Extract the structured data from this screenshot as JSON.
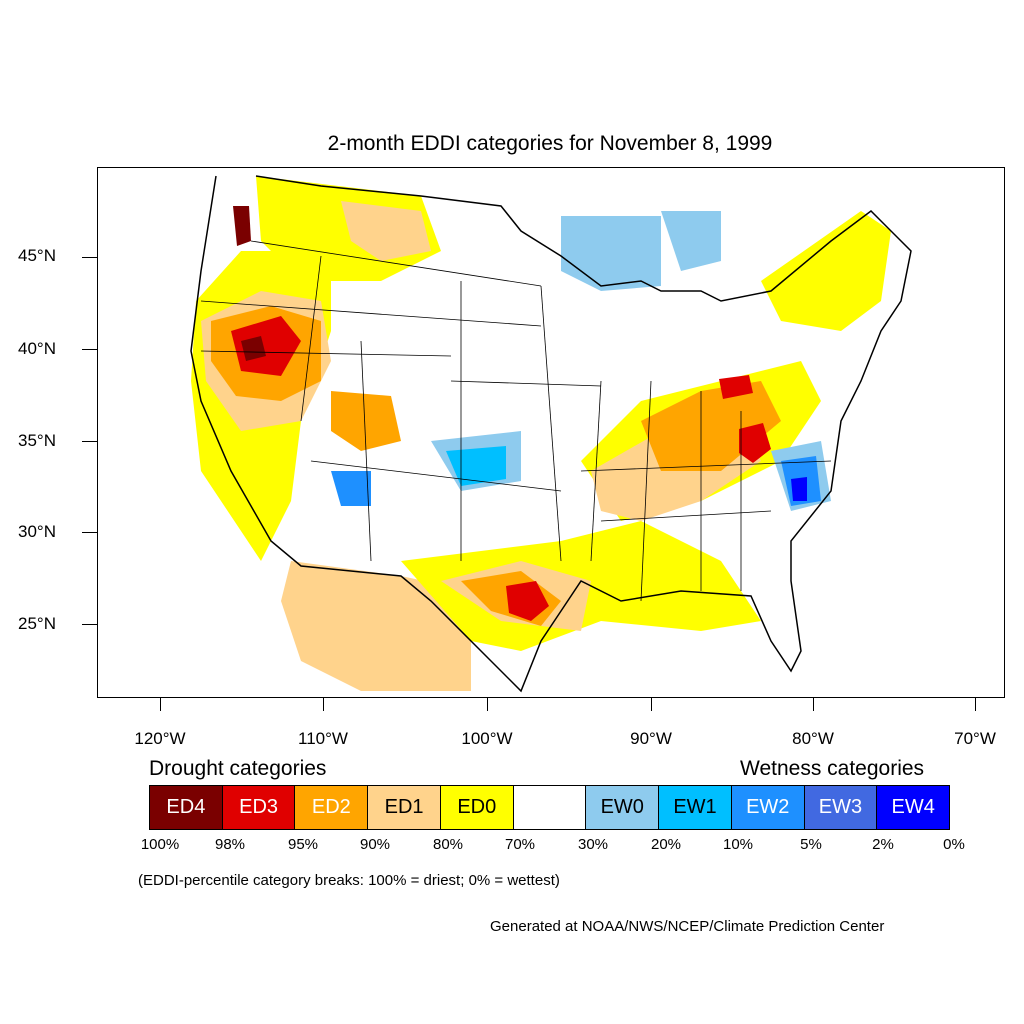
{
  "title": "2-month EDDI categories for November 8, 1999",
  "latitude_labels": [
    "45°N",
    "40°N",
    "35°N",
    "30°N",
    "25°N"
  ],
  "longitude_labels": [
    "120°W",
    "110°W",
    "100°W",
    "90°W",
    "80°W",
    "70°W"
  ],
  "legend": {
    "drought_heading": "Drought categories",
    "wetness_heading": "Wetness categories",
    "categories": [
      {
        "label": "ED4",
        "color": "#7a0000",
        "text_color": "#ffffff"
      },
      {
        "label": "ED3",
        "color": "#e00000",
        "text_color": "#ffffff"
      },
      {
        "label": "ED2",
        "color": "#ffa500",
        "text_color": "#ffffff"
      },
      {
        "label": "ED1",
        "color": "#ffd38c",
        "text_color": "#000000"
      },
      {
        "label": "ED0",
        "color": "#ffff00",
        "text_color": "#000000"
      },
      {
        "label": "",
        "color": "#ffffff",
        "text_color": "#000000"
      },
      {
        "label": "EW0",
        "color": "#8ecbee",
        "text_color": "#000000"
      },
      {
        "label": "EW1",
        "color": "#00bfff",
        "text_color": "#000000"
      },
      {
        "label": "EW2",
        "color": "#1e90ff",
        "text_color": "#ffffff"
      },
      {
        "label": "EW3",
        "color": "#4169e1",
        "text_color": "#ffffff"
      },
      {
        "label": "EW4",
        "color": "#0000ff",
        "text_color": "#ffffff"
      }
    ],
    "percentile_breaks": [
      "100%",
      "98%",
      "95%",
      "90%",
      "80%",
      "70%",
      "30%",
      "20%",
      "10%",
      "5%",
      "2%",
      "0%"
    ]
  },
  "note": "(EDDI-percentile category breaks: 100% = driest; 0% = wettest)",
  "credit": "Generated at NOAA/NWS/NCEP/Climate Prediction Center"
}
